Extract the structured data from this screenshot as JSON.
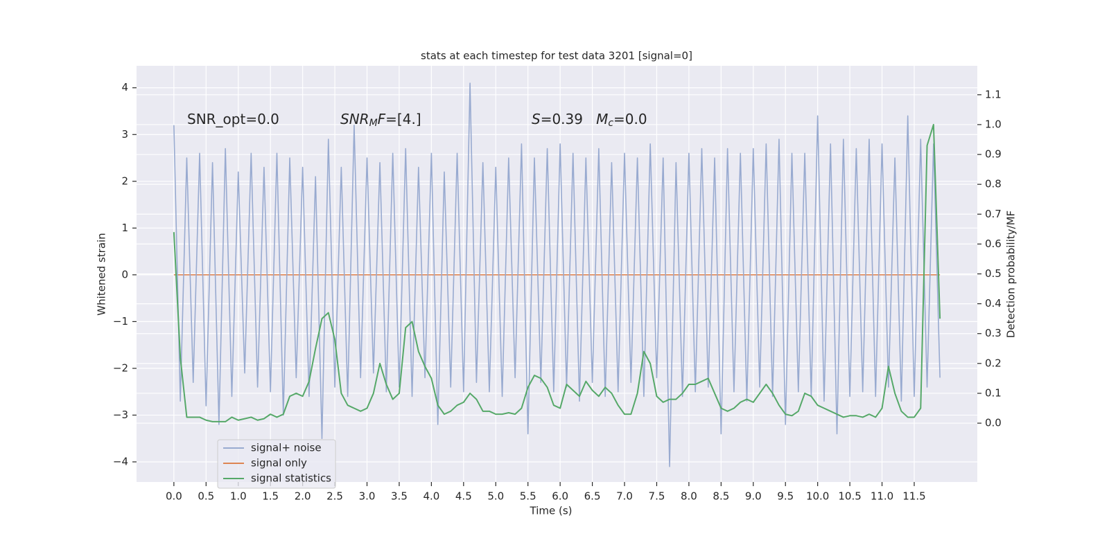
{
  "chart_data": {
    "type": "line",
    "title": "stats at each timestep for test data 3201 [signal=0]",
    "xlabel": "Time (s)",
    "ylabel": "Whitened strain",
    "y2label": "Detection probability/MF",
    "annotations": [
      {
        "parts": [
          {
            "text": "SNR_opt=0.0",
            "italic": false,
            "sub": false
          }
        ]
      },
      {
        "parts": [
          {
            "text": "SNR",
            "italic": true,
            "sub": false
          },
          {
            "text": "M",
            "italic": true,
            "sub": true
          },
          {
            "text": "F",
            "italic": true,
            "sub": false
          },
          {
            "text": "=[4.]",
            "italic": false,
            "sub": false
          }
        ]
      },
      {
        "parts": [
          {
            "text": "S",
            "italic": true,
            "sub": false
          },
          {
            "text": "=0.39   ",
            "italic": false,
            "sub": false
          },
          {
            "text": "M",
            "italic": true,
            "sub": false
          },
          {
            "text": "c",
            "italic": true,
            "sub": true
          },
          {
            "text": "=0.0",
            "italic": false,
            "sub": false
          }
        ]
      }
    ],
    "x": [
      0,
      0.1,
      0.2,
      0.3,
      0.4,
      0.5,
      0.6,
      0.7,
      0.8,
      0.9,
      1,
      1.1,
      1.2,
      1.3,
      1.4,
      1.5,
      1.6,
      1.7,
      1.8,
      1.9,
      2,
      2.1,
      2.2,
      2.3,
      2.4,
      2.5,
      2.6,
      2.7,
      2.8,
      2.9,
      3,
      3.1,
      3.2,
      3.3,
      3.4,
      3.5,
      3.6,
      3.7,
      3.8,
      3.9,
      4,
      4.1,
      4.2,
      4.3,
      4.4,
      4.5,
      4.6,
      4.7,
      4.8,
      4.9,
      5,
      5.1,
      5.2,
      5.3,
      5.4,
      5.5,
      5.6,
      5.7,
      5.8,
      5.9,
      6,
      6.1,
      6.2,
      6.3,
      6.4,
      6.5,
      6.6,
      6.7,
      6.8,
      6.9,
      7,
      7.1,
      7.2,
      7.3,
      7.4,
      7.5,
      7.6,
      7.7,
      7.8,
      7.9,
      8,
      8.1,
      8.2,
      8.3,
      8.4,
      8.5,
      8.6,
      8.7,
      8.8,
      8.9,
      9,
      9.1,
      9.2,
      9.3,
      9.4,
      9.5,
      9.6,
      9.7,
      9.8,
      9.9,
      10,
      10.1,
      10.2,
      10.3,
      10.4,
      10.5,
      10.6,
      10.7,
      10.8,
      10.9,
      11,
      11.1,
      11.2,
      11.3,
      11.4,
      11.5,
      11.6,
      11.7,
      11.8,
      11.9
    ],
    "series": [
      {
        "name": "signal only",
        "color": "#dd8452",
        "values": [
          0,
          0,
          0,
          0,
          0,
          0,
          0,
          0,
          0,
          0,
          0,
          0,
          0,
          0,
          0,
          0,
          0,
          0,
          0,
          0,
          0,
          0,
          0,
          0,
          0,
          0,
          0,
          0,
          0,
          0,
          0,
          0,
          0,
          0,
          0,
          0,
          0,
          0,
          0,
          0,
          0,
          0,
          0,
          0,
          0,
          0,
          0,
          0,
          0,
          0,
          0,
          0,
          0,
          0,
          0,
          0,
          0,
          0,
          0,
          0,
          0,
          0,
          0,
          0,
          0,
          0,
          0,
          0,
          0,
          0,
          0,
          0,
          0,
          0,
          0,
          0,
          0,
          0,
          0,
          0,
          0,
          0,
          0,
          0,
          0,
          0,
          0,
          0,
          0,
          0,
          0,
          0,
          0,
          0,
          0,
          0,
          0,
          0,
          0,
          0,
          0,
          0,
          0,
          0,
          0,
          0,
          0,
          0,
          0,
          0,
          0,
          0,
          0,
          0,
          0,
          0,
          0,
          0,
          0,
          0
        ]
      },
      {
        "name": "signal+ noise",
        "color": "#98aad0",
        "values": [
          3.2,
          -2.7,
          2.5,
          -2.3,
          2.6,
          -2.8,
          2.4,
          -3.2,
          2.7,
          -2.6,
          2.2,
          -2.1,
          2.6,
          -2.4,
          2.3,
          -2.5,
          2.6,
          -3.0,
          2.5,
          -2.2,
          2.3,
          -2.6,
          2.1,
          -3.5,
          2.9,
          -2.4,
          2.3,
          -2.6,
          3.2,
          -2.2,
          2.5,
          -2.1,
          2.4,
          -2.5,
          2.6,
          -2.4,
          2.7,
          -2.6,
          2.3,
          -2.2,
          2.6,
          -3.2,
          2.2,
          -2.4,
          2.6,
          -2.5,
          4.1,
          -2.3,
          2.4,
          -2.5,
          2.3,
          -2.6,
          2.5,
          -2.2,
          2.8,
          -3.4,
          2.5,
          -2.3,
          2.7,
          -2.5,
          2.8,
          -2.4,
          2.6,
          -2.7,
          2.5,
          -2.3,
          2.7,
          -2.6,
          2.4,
          -2.5,
          2.6,
          -2.3,
          2.5,
          -2.6,
          2.8,
          -2.2,
          2.5,
          -4.1,
          2.4,
          -2.6,
          2.6,
          -2.5,
          2.7,
          -2.4,
          2.5,
          -3.4,
          2.7,
          -2.5,
          2.6,
          -2.7,
          2.7,
          -2.4,
          2.8,
          -2.6,
          2.9,
          -3.2,
          2.6,
          -2.5,
          2.6,
          -2.6,
          3.4,
          -2.7,
          2.8,
          -3.4,
          2.9,
          -2.6,
          2.7,
          -2.5,
          2.9,
          -2.6,
          2.8,
          -2.4,
          2.5,
          -2.7,
          3.4,
          -2.6,
          2.9,
          -2.4,
          2.8,
          -2.2
        ]
      },
      {
        "name": "signal statistics",
        "color": "#55a868",
        "axis": "y2",
        "values": [
          0.64,
          0.22,
          0.02,
          0.02,
          0.02,
          0.01,
          0.005,
          0.005,
          0.005,
          0.02,
          0.01,
          0.015,
          0.02,
          0.01,
          0.015,
          0.03,
          0.02,
          0.03,
          0.09,
          0.1,
          0.09,
          0.14,
          0.25,
          0.35,
          0.37,
          0.28,
          0.1,
          0.06,
          0.05,
          0.04,
          0.05,
          0.1,
          0.2,
          0.13,
          0.08,
          0.1,
          0.32,
          0.34,
          0.24,
          0.19,
          0.15,
          0.06,
          0.03,
          0.04,
          0.06,
          0.07,
          0.1,
          0.08,
          0.04,
          0.04,
          0.03,
          0.03,
          0.035,
          0.03,
          0.05,
          0.12,
          0.16,
          0.15,
          0.12,
          0.06,
          0.05,
          0.13,
          0.11,
          0.09,
          0.14,
          0.11,
          0.09,
          0.12,
          0.1,
          0.06,
          0.03,
          0.03,
          0.1,
          0.24,
          0.2,
          0.09,
          0.07,
          0.08,
          0.08,
          0.1,
          0.13,
          0.13,
          0.14,
          0.15,
          0.1,
          0.05,
          0.04,
          0.05,
          0.07,
          0.08,
          0.07,
          0.1,
          0.13,
          0.1,
          0.06,
          0.03,
          0.025,
          0.04,
          0.1,
          0.09,
          0.06,
          0.05,
          0.04,
          0.03,
          0.02,
          0.025,
          0.025,
          0.02,
          0.03,
          0.02,
          0.05,
          0.19,
          0.1,
          0.04,
          0.02,
          0.02,
          0.05,
          0.93,
          1.0,
          0.35
        ]
      }
    ],
    "legend_order": [
      1,
      0,
      2
    ],
    "legend": "lower left",
    "grid": true,
    "xlim": [
      -0.58,
      12.48
    ],
    "xticks": [
      {
        "value": 0,
        "label": "0.0"
      },
      {
        "value": 0.5,
        "label": "0.5"
      },
      {
        "value": 1,
        "label": "1.0"
      },
      {
        "value": 1.5,
        "label": "1.5"
      },
      {
        "value": 2,
        "label": "2.0"
      },
      {
        "value": 2.5,
        "label": "2.5"
      },
      {
        "value": 3,
        "label": "3.0"
      },
      {
        "value": 3.5,
        "label": "3.5"
      },
      {
        "value": 4,
        "label": "4.0"
      },
      {
        "value": 4.5,
        "label": "4.5"
      },
      {
        "value": 5,
        "label": "5.0"
      },
      {
        "value": 5.5,
        "label": "5.5"
      },
      {
        "value": 6,
        "label": "6.0"
      },
      {
        "value": 6.5,
        "label": "6.5"
      },
      {
        "value": 7,
        "label": "7.0"
      },
      {
        "value": 7.5,
        "label": "7.5"
      },
      {
        "value": 8,
        "label": "8.0"
      },
      {
        "value": 8.5,
        "label": "8.5"
      },
      {
        "value": 9,
        "label": "9.0"
      },
      {
        "value": 9.5,
        "label": "9.5"
      },
      {
        "value": 10,
        "label": "10.0"
      },
      {
        "value": 10.5,
        "label": "10.5"
      },
      {
        "value": 11,
        "label": "11.0"
      },
      {
        "value": 11.5,
        "label": "11.5"
      }
    ],
    "ylim": [
      -4.43,
      4.47
    ],
    "yticks": [
      {
        "value": -4,
        "label": "−4"
      },
      {
        "value": -3,
        "label": "−3"
      },
      {
        "value": -2,
        "label": "−2"
      },
      {
        "value": -1,
        "label": "−1"
      },
      0,
      1,
      2,
      3,
      4
    ],
    "y2lim": [
      -0.197,
      1.197
    ],
    "y2ticks": [
      {
        "value": 0,
        "label": "0.0"
      },
      {
        "value": 0.1,
        "label": "0.1"
      },
      {
        "value": 0.2,
        "label": "0.2"
      },
      {
        "value": 0.3,
        "label": "0.3"
      },
      {
        "value": 0.4,
        "label": "0.4"
      },
      {
        "value": 0.5,
        "label": "0.5"
      },
      {
        "value": 0.6,
        "label": "0.6"
      },
      {
        "value": 0.7,
        "label": "0.7"
      },
      {
        "value": 0.8,
        "label": "0.8"
      },
      {
        "value": 0.9,
        "label": "0.9"
      },
      {
        "value": 1,
        "label": "1.0"
      },
      {
        "value": 1.1,
        "label": "1.1"
      }
    ]
  }
}
